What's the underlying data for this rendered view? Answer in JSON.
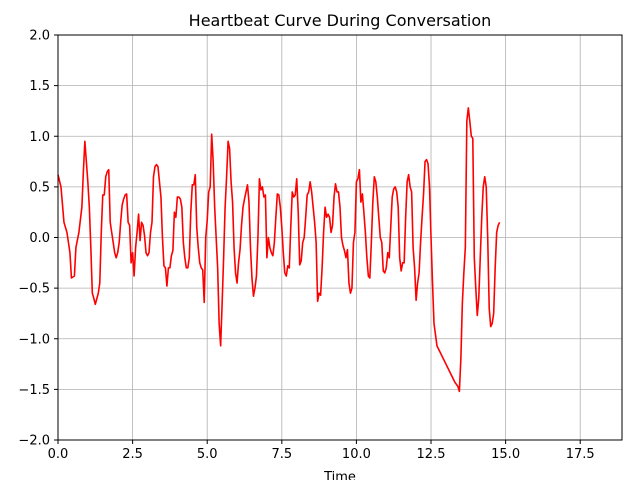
{
  "chart_data": {
    "type": "line",
    "title": "Heartbeat Curve During Conversation",
    "xlabel": "Time",
    "ylabel": "",
    "xlim": [
      0,
      18.9
    ],
    "ylim": [
      -2.0,
      2.0
    ],
    "grid": true,
    "line_color": "#ff0000",
    "x_ticks": [
      {
        "value": 0,
        "label": "0.0"
      },
      {
        "value": 2.5,
        "label": "2.5"
      },
      {
        "value": 5,
        "label": "5.0"
      },
      {
        "value": 7.5,
        "label": "7.5"
      },
      {
        "value": 10,
        "label": "10.0"
      },
      {
        "value": 12.5,
        "label": "12.5"
      },
      {
        "value": 15,
        "label": "15.0"
      },
      {
        "value": 17.5,
        "label": "17.5"
      }
    ],
    "y_ticks": [
      {
        "value": -2.0,
        "label": "−2.0"
      },
      {
        "value": -1.5,
        "label": "−1.5"
      },
      {
        "value": -1.0,
        "label": "−1.0"
      },
      {
        "value": -0.5,
        "label": "−0.5"
      },
      {
        "value": 0.0,
        "label": "0.0"
      },
      {
        "value": 0.5,
        "label": "0.5"
      },
      {
        "value": 1.0,
        "label": "1.0"
      },
      {
        "value": 1.5,
        "label": "1.5"
      },
      {
        "value": 2.0,
        "label": "2.0"
      }
    ],
    "series": [
      {
        "points": [
          [
            0.0,
            0.62
          ],
          [
            0.1,
            0.5
          ],
          [
            0.2,
            0.15
          ],
          [
            0.3,
            0.05
          ],
          [
            0.4,
            -0.15
          ],
          [
            0.45,
            -0.4
          ],
          [
            0.55,
            -0.38
          ],
          [
            0.6,
            -0.1
          ],
          [
            0.7,
            0.05
          ],
          [
            0.8,
            0.3
          ],
          [
            0.85,
            0.65
          ],
          [
            0.9,
            0.95
          ],
          [
            0.95,
            0.75
          ],
          [
            1.0,
            0.55
          ],
          [
            1.05,
            0.3
          ],
          [
            1.1,
            -0.1
          ],
          [
            1.15,
            -0.55
          ],
          [
            1.2,
            -0.6
          ],
          [
            1.25,
            -0.66
          ],
          [
            1.35,
            -0.55
          ],
          [
            1.4,
            -0.45
          ],
          [
            1.45,
            0.05
          ],
          [
            1.5,
            0.42
          ],
          [
            1.55,
            0.42
          ],
          [
            1.6,
            0.6
          ],
          [
            1.65,
            0.65
          ],
          [
            1.7,
            0.67
          ],
          [
            1.75,
            0.15
          ],
          [
            1.8,
            0.05
          ],
          [
            1.85,
            -0.05
          ],
          [
            1.9,
            -0.15
          ],
          [
            1.95,
            -0.2
          ],
          [
            2.0,
            -0.15
          ],
          [
            2.05,
            -0.05
          ],
          [
            2.1,
            0.15
          ],
          [
            2.15,
            0.32
          ],
          [
            2.2,
            0.38
          ],
          [
            2.25,
            0.42
          ],
          [
            2.3,
            0.43
          ],
          [
            2.35,
            0.15
          ],
          [
            2.4,
            0.12
          ],
          [
            2.45,
            -0.25
          ],
          [
            2.5,
            -0.15
          ],
          [
            2.55,
            -0.38
          ],
          [
            2.6,
            -0.1
          ],
          [
            2.65,
            0.05
          ],
          [
            2.7,
            0.23
          ],
          [
            2.75,
            -0.03
          ],
          [
            2.8,
            0.15
          ],
          [
            2.85,
            0.12
          ],
          [
            2.9,
            0.02
          ],
          [
            2.95,
            -0.15
          ],
          [
            3.0,
            -0.18
          ],
          [
            3.05,
            -0.15
          ],
          [
            3.1,
            0.05
          ],
          [
            3.15,
            0.15
          ],
          [
            3.2,
            0.6
          ],
          [
            3.25,
            0.7
          ],
          [
            3.3,
            0.72
          ],
          [
            3.35,
            0.7
          ],
          [
            3.4,
            0.55
          ],
          [
            3.45,
            0.4
          ],
          [
            3.5,
            0.0
          ],
          [
            3.55,
            -0.28
          ],
          [
            3.6,
            -0.3
          ],
          [
            3.65,
            -0.48
          ],
          [
            3.7,
            -0.3
          ],
          [
            3.75,
            -0.3
          ],
          [
            3.8,
            -0.18
          ],
          [
            3.85,
            -0.13
          ],
          [
            3.9,
            0.25
          ],
          [
            3.95,
            0.2
          ],
          [
            4.0,
            0.4
          ],
          [
            4.05,
            0.4
          ],
          [
            4.1,
            0.38
          ],
          [
            4.15,
            0.3
          ],
          [
            4.2,
            -0.05
          ],
          [
            4.25,
            -0.2
          ],
          [
            4.3,
            -0.3
          ],
          [
            4.35,
            -0.3
          ],
          [
            4.4,
            -0.2
          ],
          [
            4.45,
            0.25
          ],
          [
            4.5,
            0.52
          ],
          [
            4.55,
            0.52
          ],
          [
            4.6,
            0.62
          ],
          [
            4.65,
            0.1
          ],
          [
            4.7,
            -0.1
          ],
          [
            4.75,
            -0.25
          ],
          [
            4.8,
            -0.3
          ],
          [
            4.85,
            -0.32
          ],
          [
            4.9,
            -0.64
          ],
          [
            4.95,
            0.0
          ],
          [
            5.0,
            0.17
          ],
          [
            5.05,
            0.45
          ],
          [
            5.1,
            0.5
          ],
          [
            5.15,
            1.02
          ],
          [
            5.2,
            0.75
          ],
          [
            5.25,
            0.3
          ],
          [
            5.3,
            0.0
          ],
          [
            5.35,
            -0.3
          ],
          [
            5.4,
            -0.85
          ],
          [
            5.45,
            -1.07
          ],
          [
            5.5,
            -0.65
          ],
          [
            5.55,
            -0.2
          ],
          [
            5.6,
            0.3
          ],
          [
            5.65,
            0.6
          ],
          [
            5.7,
            0.95
          ],
          [
            5.75,
            0.88
          ],
          [
            5.8,
            0.55
          ],
          [
            5.85,
            0.35
          ],
          [
            5.9,
            -0.1
          ],
          [
            5.95,
            -0.35
          ],
          [
            6.0,
            -0.45
          ],
          [
            6.05,
            -0.25
          ],
          [
            6.1,
            -0.12
          ],
          [
            6.15,
            0.12
          ],
          [
            6.2,
            0.3
          ],
          [
            6.25,
            0.38
          ],
          [
            6.3,
            0.45
          ],
          [
            6.35,
            0.52
          ],
          [
            6.4,
            0.35
          ],
          [
            6.45,
            -0.1
          ],
          [
            6.5,
            -0.4
          ],
          [
            6.55,
            -0.58
          ],
          [
            6.6,
            -0.5
          ],
          [
            6.65,
            -0.38
          ],
          [
            6.7,
            0.0
          ],
          [
            6.75,
            0.58
          ],
          [
            6.8,
            0.47
          ],
          [
            6.85,
            0.5
          ],
          [
            6.9,
            0.4
          ],
          [
            6.95,
            0.42
          ],
          [
            7.0,
            -0.2
          ],
          [
            7.05,
            0.0
          ],
          [
            7.1,
            -0.1
          ],
          [
            7.15,
            -0.15
          ],
          [
            7.2,
            -0.18
          ],
          [
            7.25,
            -0.05
          ],
          [
            7.3,
            0.2
          ],
          [
            7.35,
            0.43
          ],
          [
            7.4,
            0.42
          ],
          [
            7.45,
            0.3
          ],
          [
            7.5,
            0.1
          ],
          [
            7.55,
            -0.15
          ],
          [
            7.6,
            -0.35
          ],
          [
            7.65,
            -0.38
          ],
          [
            7.7,
            -0.28
          ],
          [
            7.75,
            -0.3
          ],
          [
            7.8,
            0.1
          ],
          [
            7.85,
            0.45
          ],
          [
            7.9,
            0.4
          ],
          [
            7.95,
            0.42
          ],
          [
            8.0,
            0.58
          ],
          [
            8.05,
            0.25
          ],
          [
            8.1,
            -0.27
          ],
          [
            8.15,
            -0.23
          ],
          [
            8.2,
            -0.05
          ],
          [
            8.25,
            0.0
          ],
          [
            8.3,
            0.2
          ],
          [
            8.35,
            0.42
          ],
          [
            8.4,
            0.45
          ],
          [
            8.45,
            0.55
          ],
          [
            8.5,
            0.45
          ],
          [
            8.55,
            0.3
          ],
          [
            8.6,
            0.15
          ],
          [
            8.65,
            -0.05
          ],
          [
            8.7,
            -0.63
          ],
          [
            8.75,
            -0.55
          ],
          [
            8.8,
            -0.57
          ],
          [
            8.85,
            -0.3
          ],
          [
            8.9,
            0.05
          ],
          [
            8.95,
            0.3
          ],
          [
            9.0,
            0.2
          ],
          [
            9.05,
            0.23
          ],
          [
            9.1,
            0.2
          ],
          [
            9.15,
            0.05
          ],
          [
            9.2,
            0.12
          ],
          [
            9.25,
            0.4
          ],
          [
            9.3,
            0.53
          ],
          [
            9.35,
            0.45
          ],
          [
            9.4,
            0.45
          ],
          [
            9.45,
            0.3
          ],
          [
            9.5,
            0.0
          ],
          [
            9.55,
            -0.08
          ],
          [
            9.6,
            -0.13
          ],
          [
            9.65,
            -0.2
          ],
          [
            9.7,
            -0.12
          ],
          [
            9.75,
            -0.45
          ],
          [
            9.8,
            -0.55
          ],
          [
            9.85,
            -0.5
          ],
          [
            9.9,
            -0.05
          ],
          [
            9.95,
            0.05
          ],
          [
            10.0,
            0.55
          ],
          [
            10.05,
            0.58
          ],
          [
            10.1,
            0.67
          ],
          [
            10.15,
            0.35
          ],
          [
            10.2,
            0.43
          ],
          [
            10.25,
            0.25
          ],
          [
            10.3,
            0.05
          ],
          [
            10.35,
            -0.2
          ],
          [
            10.4,
            -0.38
          ],
          [
            10.45,
            -0.4
          ],
          [
            10.5,
            -0.05
          ],
          [
            10.55,
            0.35
          ],
          [
            10.6,
            0.6
          ],
          [
            10.65,
            0.55
          ],
          [
            10.7,
            0.4
          ],
          [
            10.75,
            0.2
          ],
          [
            10.8,
            0.0
          ],
          [
            10.85,
            -0.05
          ],
          [
            10.9,
            -0.33
          ],
          [
            10.95,
            -0.35
          ],
          [
            11.0,
            -0.3
          ],
          [
            11.05,
            -0.15
          ],
          [
            11.1,
            -0.2
          ],
          [
            11.15,
            0.1
          ],
          [
            11.2,
            0.4
          ],
          [
            11.25,
            0.48
          ],
          [
            11.3,
            0.5
          ],
          [
            11.35,
            0.45
          ],
          [
            11.4,
            0.3
          ],
          [
            11.45,
            -0.2
          ],
          [
            11.5,
            -0.33
          ],
          [
            11.55,
            -0.25
          ],
          [
            11.6,
            -0.25
          ],
          [
            11.65,
            0.2
          ],
          [
            11.7,
            0.55
          ],
          [
            11.75,
            0.62
          ],
          [
            11.8,
            0.5
          ],
          [
            11.85,
            0.45
          ],
          [
            11.9,
            -0.1
          ],
          [
            11.95,
            -0.3
          ],
          [
            12.0,
            -0.62
          ],
          [
            12.05,
            -0.45
          ],
          [
            12.1,
            -0.35
          ],
          [
            12.15,
            -0.05
          ],
          [
            12.2,
            0.2
          ],
          [
            12.25,
            0.43
          ],
          [
            12.3,
            0.75
          ],
          [
            12.35,
            0.77
          ],
          [
            12.4,
            0.73
          ],
          [
            12.45,
            0.5
          ],
          [
            12.5,
            0.0
          ],
          [
            12.55,
            -0.45
          ],
          [
            12.6,
            -0.85
          ],
          [
            12.7,
            -1.07
          ],
          [
            13.0,
            -1.25
          ],
          [
            13.3,
            -1.43
          ],
          [
            13.4,
            -1.47
          ],
          [
            13.45,
            -1.52
          ],
          [
            13.5,
            -1.2
          ],
          [
            13.55,
            -0.65
          ],
          [
            13.6,
            -0.35
          ],
          [
            13.65,
            -0.1
          ],
          [
            13.7,
            1.15
          ],
          [
            13.75,
            1.28
          ],
          [
            13.8,
            1.15
          ],
          [
            13.85,
            1.0
          ],
          [
            13.9,
            0.98
          ],
          [
            13.95,
            -0.2
          ],
          [
            14.0,
            -0.5
          ],
          [
            14.05,
            -0.77
          ],
          [
            14.1,
            -0.6
          ],
          [
            14.15,
            -0.2
          ],
          [
            14.2,
            0.2
          ],
          [
            14.25,
            0.5
          ],
          [
            14.3,
            0.6
          ],
          [
            14.35,
            0.5
          ],
          [
            14.4,
            0.0
          ],
          [
            14.45,
            -0.7
          ],
          [
            14.5,
            -0.88
          ],
          [
            14.55,
            -0.85
          ],
          [
            14.6,
            -0.75
          ],
          [
            14.65,
            -0.3
          ],
          [
            14.7,
            0.05
          ],
          [
            14.75,
            0.12
          ],
          [
            14.8,
            0.15
          ]
        ]
      }
    ]
  }
}
